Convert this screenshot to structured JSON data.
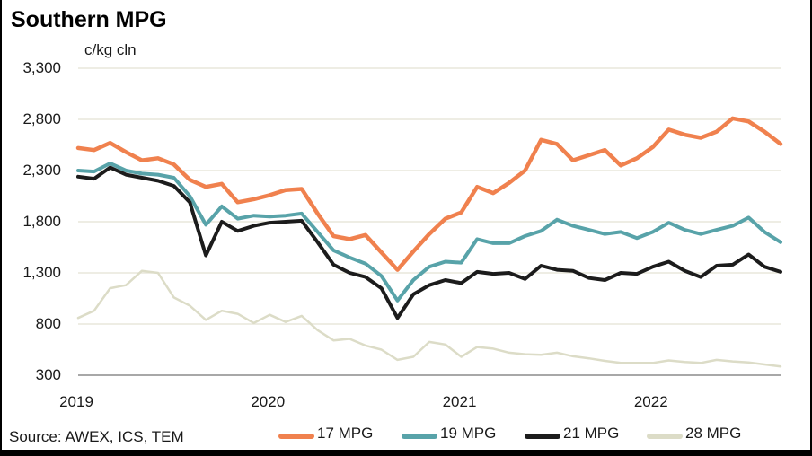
{
  "header": {
    "title": "Southern MPG"
  },
  "source_note": "Source: AWEX, ICS, TEM",
  "colors": {
    "series_17mpg": "#F0814E",
    "series_19mpg": "#58A3A9",
    "series_21mpg": "#1C1C1C",
    "series_28mpg": "#DCDCC7",
    "gridline": "#E9E7DB",
    "axis_line": "#A8A8A8",
    "text": "#1A1A1A",
    "frame_border": "#000000"
  },
  "chart_data": {
    "type": "line",
    "title": "Southern MPG",
    "ylabel": "c/kg cln",
    "xlabel": "",
    "grid": "horizontal",
    "legend_position": "bottom",
    "ylim": [
      300,
      3300
    ],
    "xlim": [
      2019.0,
      2022.667
    ],
    "y_ticks": [
      {
        "label": "3,300",
        "value": 3300
      },
      {
        "label": "2,800",
        "value": 2800
      },
      {
        "label": "2,300",
        "value": 2300
      },
      {
        "label": "1,800",
        "value": 1800
      },
      {
        "label": "1,300",
        "value": 1300
      },
      {
        "label": "800",
        "value": 800
      },
      {
        "label": "300",
        "value": 300
      }
    ],
    "x_ticks": [
      {
        "label": "2019",
        "value": 2019
      },
      {
        "label": "2020",
        "value": 2020
      },
      {
        "label": "2021",
        "value": 2021
      },
      {
        "label": "2022",
        "value": 2022
      }
    ],
    "x": [
      2019.0,
      2019.083,
      2019.167,
      2019.25,
      2019.333,
      2019.417,
      2019.5,
      2019.583,
      2019.667,
      2019.75,
      2019.833,
      2019.917,
      2020.0,
      2020.083,
      2020.167,
      2020.25,
      2020.333,
      2020.417,
      2020.5,
      2020.583,
      2020.667,
      2020.75,
      2020.833,
      2020.917,
      2021.0,
      2021.083,
      2021.167,
      2021.25,
      2021.333,
      2021.417,
      2021.5,
      2021.583,
      2021.667,
      2021.75,
      2021.833,
      2021.917,
      2022.0,
      2022.083,
      2022.167,
      2022.25,
      2022.333,
      2022.417,
      2022.5,
      2022.583,
      2022.667
    ],
    "series": [
      {
        "name": "17 MPG",
        "color": "#F0814E",
        "stroke_width": 4.5,
        "values": [
          2520,
          2500,
          2570,
          2480,
          2400,
          2420,
          2360,
          2210,
          2140,
          2170,
          1990,
          2020,
          2060,
          2110,
          2120,
          1880,
          1660,
          1630,
          1670,
          1500,
          1330,
          1510,
          1680,
          1830,
          1890,
          2140,
          2080,
          2180,
          2300,
          2600,
          2560,
          2400,
          2450,
          2500,
          2350,
          2420,
          2530,
          2700,
          2650,
          2620,
          2680,
          2810,
          2780,
          2680,
          2560
        ]
      },
      {
        "name": "19 MPG",
        "color": "#58A3A9",
        "stroke_width": 4,
        "values": [
          2300,
          2290,
          2370,
          2300,
          2270,
          2260,
          2230,
          2050,
          1770,
          1950,
          1830,
          1860,
          1850,
          1860,
          1880,
          1700,
          1520,
          1450,
          1390,
          1270,
          1030,
          1230,
          1360,
          1410,
          1400,
          1630,
          1590,
          1590,
          1660,
          1710,
          1820,
          1760,
          1720,
          1680,
          1700,
          1640,
          1700,
          1790,
          1720,
          1680,
          1720,
          1760,
          1840,
          1700,
          1600
        ]
      },
      {
        "name": "21 MPG",
        "color": "#1C1C1C",
        "stroke_width": 4,
        "values": [
          2240,
          2220,
          2330,
          2260,
          2230,
          2200,
          2150,
          1990,
          1470,
          1800,
          1710,
          1760,
          1790,
          1800,
          1810,
          1600,
          1380,
          1300,
          1260,
          1150,
          860,
          1090,
          1180,
          1230,
          1200,
          1310,
          1290,
          1300,
          1240,
          1370,
          1330,
          1320,
          1250,
          1230,
          1300,
          1290,
          1360,
          1410,
          1320,
          1260,
          1370,
          1380,
          1480,
          1360,
          1310
        ]
      },
      {
        "name": "28 MPG",
        "color": "#DCDCC7",
        "stroke_width": 2.5,
        "values": [
          860,
          930,
          1150,
          1180,
          1320,
          1300,
          1060,
          980,
          840,
          930,
          900,
          810,
          890,
          820,
          880,
          740,
          640,
          655,
          590,
          550,
          450,
          480,
          625,
          600,
          480,
          575,
          560,
          520,
          505,
          500,
          520,
          485,
          465,
          440,
          420,
          420,
          420,
          445,
          430,
          420,
          450,
          435,
          425,
          405,
          385
        ]
      }
    ]
  }
}
